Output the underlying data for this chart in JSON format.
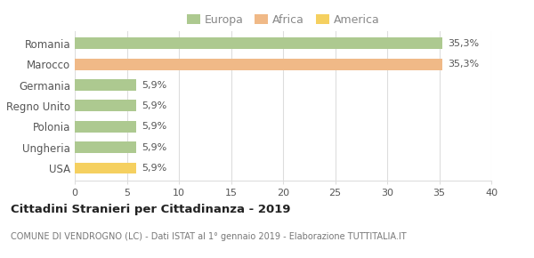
{
  "categories": [
    "Romania",
    "Marocco",
    "Germania",
    "Regno Unito",
    "Polonia",
    "Ungheria",
    "USA"
  ],
  "values": [
    35.3,
    35.3,
    5.9,
    5.9,
    5.9,
    5.9,
    5.9
  ],
  "bar_colors": [
    "#adc990",
    "#f0b987",
    "#adc990",
    "#adc990",
    "#adc990",
    "#adc990",
    "#f5d060"
  ],
  "labels": [
    "35,3%",
    "35,3%",
    "5,9%",
    "5,9%",
    "5,9%",
    "5,9%",
    "5,9%"
  ],
  "xlim": [
    0,
    40
  ],
  "xticks": [
    0,
    5,
    10,
    15,
    20,
    25,
    30,
    35,
    40
  ],
  "legend_items": [
    {
      "label": "Europa",
      "color": "#adc990"
    },
    {
      "label": "Africa",
      "color": "#f0b987"
    },
    {
      "label": "America",
      "color": "#f5d060"
    }
  ],
  "title": "Cittadini Stranieri per Cittadinanza - 2019",
  "subtitle": "COMUNE DI VENDROGNO (LC) - Dati ISTAT al 1° gennaio 2019 - Elaborazione TUTTITALIA.IT",
  "bg_color": "#ffffff",
  "grid_color": "#dddddd",
  "bar_height": 0.55
}
